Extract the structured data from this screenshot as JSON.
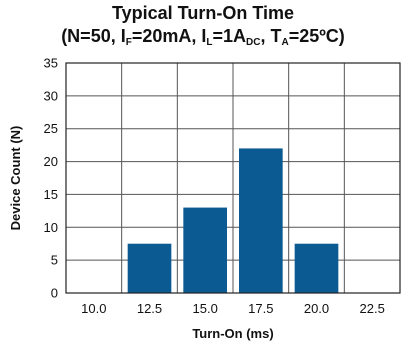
{
  "chart_data": {
    "type": "bar",
    "title": "Typical Turn-On Time",
    "subtitle": {
      "open": "(N=50, I",
      "sub1": "F",
      "mid1": "=20mA, I",
      "sub2": "L",
      "mid2": "=1A",
      "sub3": "DC",
      "mid3": ", T",
      "sub4": "A",
      "close": "=25ºC)"
    },
    "xlabel": "Turn-On (ms)",
    "ylabel": "Device Count (N)",
    "x_ticks": [
      "10.0",
      "12.5",
      "15.0",
      "17.5",
      "20.0",
      "22.5"
    ],
    "categories": [
      "12.5",
      "15.0",
      "17.5",
      "20.0"
    ],
    "values": [
      7.5,
      13,
      22,
      7.5
    ],
    "y_ticks": [
      0,
      5,
      10,
      15,
      20,
      25,
      30,
      35
    ],
    "ylim": [
      0,
      35
    ],
    "grid": true,
    "colors": {
      "bar": "#0b5a92",
      "grid": "#555555",
      "axis": "#222222"
    }
  }
}
